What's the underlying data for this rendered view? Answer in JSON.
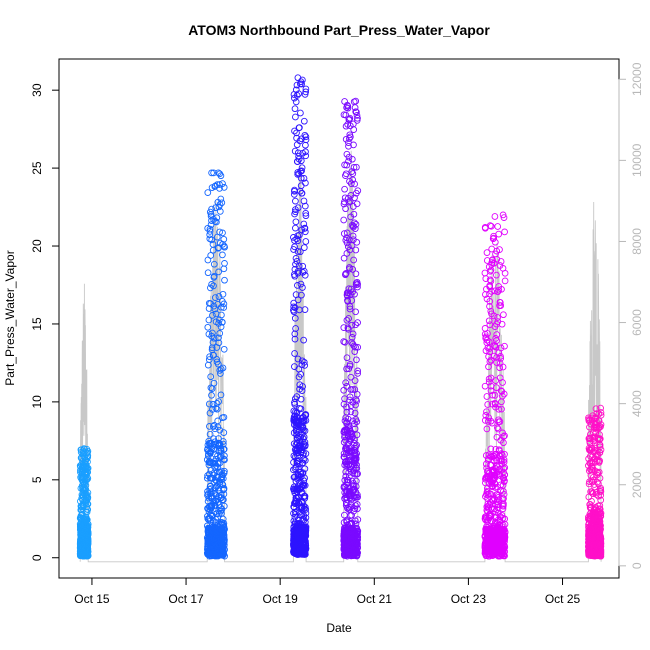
{
  "chart_data": {
    "type": "scatter",
    "title": "ATOM3 Northbound Part_Press_Water_Vapor",
    "xlabel": "Date",
    "ylabel": "Part_Press_Water_Vapor",
    "x_tick_labels": [
      "Oct 15",
      "Oct 17",
      "Oct 19",
      "Oct 21",
      "Oct 23",
      "Oct 25"
    ],
    "x_ticks_day": [
      15,
      17,
      19,
      21,
      23,
      25
    ],
    "xlim_day": [
      14.3,
      26.2
    ],
    "y_ticks": [
      0,
      5,
      10,
      15,
      20,
      25,
      30
    ],
    "y_tick_labels": [
      "0",
      "5",
      "10",
      "15",
      "20",
      "25",
      "30"
    ],
    "ylim": [
      -1.3,
      32.0
    ],
    "y2_ticks": [
      0,
      2000,
      4000,
      6000,
      8000,
      10000,
      12000
    ],
    "y2_tick_labels": [
      "0",
      "2000",
      "4000",
      "6000",
      "8000",
      "10000",
      "12000"
    ],
    "y2lim": [
      -300,
      12500
    ],
    "grid": false,
    "legend": "none",
    "point_style": "open-circle",
    "altitude_line_color": "#c8c8c8",
    "flights": [
      {
        "day_start": 14.75,
        "day_end": 14.92,
        "y_min": 0.1,
        "y_max": 7.0,
        "color": "#1a9fff",
        "alt_max": 7100
      },
      {
        "day_start": 17.45,
        "day_end": 17.82,
        "y_min": 0.1,
        "y_max": 24.7,
        "color": "#1466ff",
        "alt_max": 9400
      },
      {
        "day_start": 19.28,
        "day_end": 19.55,
        "y_min": 0.2,
        "y_max": 30.8,
        "color": "#2d14ff",
        "alt_max": 10200
      },
      {
        "day_start": 20.35,
        "day_end": 20.65,
        "y_min": 0.1,
        "y_max": 29.3,
        "color": "#7a0aff",
        "alt_max": 10600
      },
      {
        "day_start": 23.35,
        "day_end": 23.78,
        "y_min": 0.1,
        "y_max": 22.0,
        "color": "#e000ff",
        "alt_max": 8300
      },
      {
        "day_start": 25.55,
        "day_end": 25.82,
        "y_min": 0.1,
        "y_max": 9.6,
        "color": "#ff10c8",
        "alt_max": 9700
      }
    ]
  }
}
